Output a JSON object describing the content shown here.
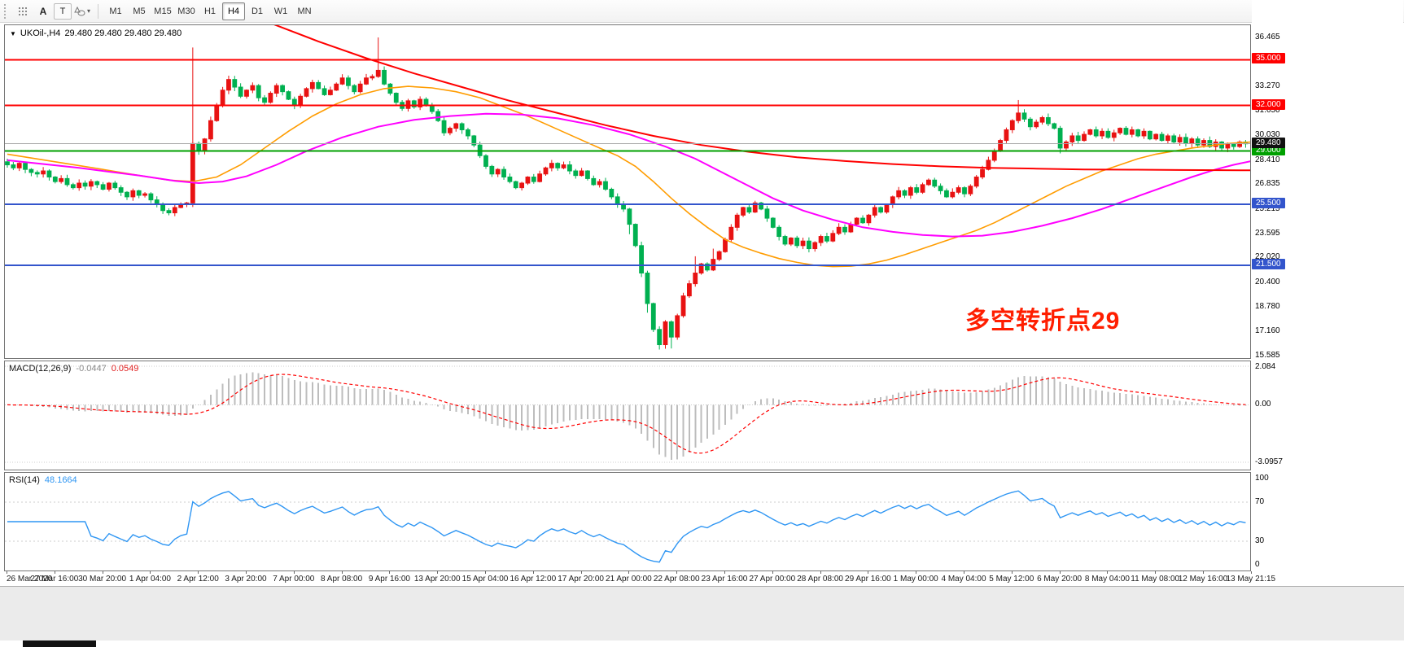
{
  "icons": {
    "caret": "▾",
    "chart_menu_arrow": "▼"
  },
  "toolbar": {
    "tool_a_label": "A",
    "tool_t_label": "T",
    "timeframes": [
      "M1",
      "M5",
      "M15",
      "M30",
      "H1",
      "H4",
      "D1",
      "W1",
      "MN"
    ],
    "active_timeframe": "H4"
  },
  "chart_title": {
    "symbol_period": "UKOil-,H4",
    "ohlc": "29.480 29.480 29.480 29.480"
  },
  "annotation": {
    "text": "多空转折点29",
    "color": "#ff1e00"
  },
  "colors": {
    "up_candle": "#e81212",
    "down_candle": "#00b050",
    "ma_orange": "#ff9c00",
    "ma_magenta": "#ff00ff",
    "ma_red": "#ff0000",
    "line_red": "#ff0000",
    "line_green": "#00a000",
    "line_blue": "#3355cc",
    "bid_line": "#a8a8a8",
    "macd_hist": "#bdbdbd",
    "macd_signal": "#ff0000",
    "rsi_line": "#2f96f3",
    "grid_dotted": "#cccccc"
  },
  "main_chart": {
    "levels": [
      {
        "label": "35.000",
        "price": 35.0,
        "color_key": "line_red"
      },
      {
        "label": "32.000",
        "price": 32.0,
        "color_key": "line_red"
      },
      {
        "label": "29.000",
        "price": 29.0,
        "color_key": "line_green"
      },
      {
        "label": "25.500",
        "price": 25.5,
        "color_key": "line_blue"
      },
      {
        "label": "21.500",
        "price": 21.5,
        "color_key": "line_blue"
      }
    ],
    "current_price": {
      "label": "29.480",
      "price": 29.48,
      "badge_color": "#111111"
    },
    "grid_labels": [
      "36.465",
      "33.270",
      "31.650",
      "30.030",
      "28.410",
      "26.835",
      "25.215",
      "23.595",
      "22.020",
      "20.400",
      "18.780",
      "17.160",
      "15.585"
    ]
  },
  "macd": {
    "title": "MACD(12,26,9)",
    "value_main": "-0.0447",
    "value_signal": "0.0549",
    "axis_labels": [
      {
        "t": "2.084",
        "v": 2.084
      },
      {
        "t": "0.00",
        "v": 0
      },
      {
        "t": "-3.0957",
        "v": -3.0957
      }
    ],
    "levels": [
      2.084,
      0,
      -3.0957
    ],
    "ylim": [
      -3.5,
      2.35
    ],
    "params": {
      "fast": 12,
      "slow": 26,
      "signal": 9
    }
  },
  "rsi": {
    "title": "RSI(14)",
    "value": "48.1664",
    "axis_labels": [
      {
        "t": "100",
        "v": 100
      },
      {
        "t": "70",
        "v": 70
      },
      {
        "t": "30",
        "v": 30
      },
      {
        "t": "0",
        "v": 0
      }
    ],
    "levels": [
      70,
      30
    ],
    "ylim": [
      0,
      100
    ],
    "params": {
      "period": 14
    }
  },
  "time_axis": {
    "candles_per_label": 8,
    "labels": [
      "26 Mar 2020",
      "27 Mar 16:00",
      "30 Mar 20:00",
      "1 Apr 04:00",
      "2 Apr 12:00",
      "3 Apr 20:00",
      "7 Apr 00:00",
      "8 Apr 08:00",
      "9 Apr 16:00",
      "13 Apr 20:00",
      "15 Apr 04:00",
      "16 Apr 12:00",
      "17 Apr 20:00",
      "21 Apr 00:00",
      "22 Apr 08:00",
      "23 Apr 16:00",
      "27 Apr 00:00",
      "28 Apr 08:00",
      "29 Apr 16:00",
      "1 May 00:00",
      "4 May 04:00",
      "5 May 12:00",
      "6 May 20:00",
      "8 May 04:00",
      "11 May 08:00",
      "12 May 16:00",
      "13 May 21:15"
    ]
  },
  "chart_data": {
    "type": "candlestick",
    "symbol": "UKOil-",
    "period": "H4",
    "price_range": [
      15.42,
      37.26
    ],
    "open_first": 28.3,
    "closes": [
      28.1,
      27.9,
      28.2,
      27.8,
      27.6,
      27.5,
      27.7,
      27.3,
      27.0,
      27.2,
      26.8,
      26.6,
      26.9,
      26.7,
      27.0,
      26.8,
      26.5,
      26.9,
      26.6,
      26.3,
      26.0,
      26.4,
      26.1,
      26.2,
      25.8,
      25.5,
      25.1,
      24.95,
      25.3,
      25.5,
      25.6,
      29.5,
      29.0,
      29.8,
      31.0,
      32.0,
      33.0,
      33.7,
      33.2,
      32.6,
      33.0,
      33.3,
      32.5,
      32.2,
      32.8,
      33.3,
      32.9,
      32.4,
      32.0,
      32.6,
      33.1,
      33.5,
      33.1,
      32.7,
      33.0,
      33.4,
      33.8,
      33.3,
      32.9,
      33.4,
      33.8,
      33.9,
      34.3,
      33.4,
      32.8,
      32.2,
      31.8,
      32.3,
      31.9,
      32.4,
      32.0,
      31.6,
      31.0,
      30.2,
      30.5,
      30.8,
      30.4,
      30.0,
      29.4,
      28.7,
      28.0,
      27.5,
      27.8,
      27.3,
      27.0,
      26.6,
      26.9,
      27.3,
      27.0,
      27.5,
      27.9,
      28.2,
      27.9,
      28.1,
      27.7,
      27.4,
      27.7,
      27.2,
      26.8,
      27.0,
      26.5,
      26.0,
      25.5,
      25.2,
      24.2,
      22.8,
      21.0,
      19.0,
      17.3,
      16.3,
      17.8,
      16.8,
      18.2,
      19.5,
      20.3,
      21.0,
      21.6,
      21.2,
      21.9,
      22.4,
      23.2,
      24.0,
      24.8,
      25.3,
      25.0,
      25.6,
      25.2,
      24.6,
      24.0,
      23.4,
      22.9,
      23.3,
      22.8,
      23.1,
      22.6,
      23.0,
      23.4,
      23.1,
      23.6,
      24.0,
      23.7,
      24.2,
      24.6,
      24.3,
      24.8,
      25.3,
      25.0,
      25.5,
      26.0,
      26.4,
      26.1,
      26.6,
      26.3,
      26.8,
      27.1,
      26.7,
      26.4,
      26.0,
      26.3,
      26.6,
      26.2,
      26.7,
      27.3,
      27.8,
      28.4,
      29.0,
      29.7,
      30.4,
      31.0,
      31.5,
      31.1,
      30.6,
      30.9,
      31.2,
      30.8,
      30.5,
      29.2,
      29.6,
      30.0,
      29.7,
      30.1,
      30.4,
      30.0,
      30.3,
      29.9,
      30.2,
      30.5,
      30.1,
      30.4,
      30.0,
      30.3,
      29.8,
      30.1,
      29.7,
      30.0,
      29.6,
      29.9,
      29.5,
      29.8,
      29.4,
      29.7,
      29.3,
      29.6,
      29.2,
      29.5,
      29.3,
      29.6,
      29.48
    ],
    "wick_overrides": {
      "31": {
        "h": 35.8
      },
      "37": {
        "h": 33.95
      },
      "62": {
        "h": 36.46
      },
      "104": {
        "l": 23.55
      },
      "107": {
        "l": 18.4
      },
      "109": {
        "l": 15.98
      },
      "111": {
        "l": 16.05
      },
      "115": {
        "h": 22.1
      },
      "118": {
        "h": 22.6
      },
      "169": {
        "h": 32.35
      },
      "176": {
        "l": 28.85
      }
    },
    "ma_lines": [
      {
        "name": "ma-fast-orange",
        "color_key": "ma_orange",
        "width": 1.6,
        "points": [
          [
            0,
            28.8
          ],
          [
            8,
            28.3
          ],
          [
            16,
            27.8
          ],
          [
            22,
            27.4
          ],
          [
            27,
            27.1
          ],
          [
            31,
            27.0
          ],
          [
            35,
            27.3
          ],
          [
            39,
            28.1
          ],
          [
            43,
            29.2
          ],
          [
            47,
            30.3
          ],
          [
            51,
            31.3
          ],
          [
            55,
            32.1
          ],
          [
            59,
            32.7
          ],
          [
            63,
            33.1
          ],
          [
            67,
            33.25
          ],
          [
            71,
            33.15
          ],
          [
            75,
            32.9
          ],
          [
            79,
            32.5
          ],
          [
            83,
            31.9
          ],
          [
            87,
            31.3
          ],
          [
            91,
            30.6
          ],
          [
            95,
            29.9
          ],
          [
            99,
            29.2
          ],
          [
            102,
            28.7
          ],
          [
            105,
            28.0
          ],
          [
            108,
            27.0
          ],
          [
            111,
            25.9
          ],
          [
            114,
            24.9
          ],
          [
            117,
            24.0
          ],
          [
            120,
            23.2
          ],
          [
            123,
            22.7
          ],
          [
            126,
            22.3
          ],
          [
            129,
            21.95
          ],
          [
            132,
            21.7
          ],
          [
            135,
            21.5
          ],
          [
            138,
            21.42
          ],
          [
            141,
            21.45
          ],
          [
            144,
            21.6
          ],
          [
            147,
            21.85
          ],
          [
            150,
            22.2
          ],
          [
            153,
            22.6
          ],
          [
            156,
            23.0
          ],
          [
            159,
            23.4
          ],
          [
            162,
            23.8
          ],
          [
            165,
            24.3
          ],
          [
            168,
            24.9
          ],
          [
            171,
            25.5
          ],
          [
            174,
            26.1
          ],
          [
            177,
            26.7
          ],
          [
            180,
            27.2
          ],
          [
            183,
            27.7
          ],
          [
            186,
            28.1
          ],
          [
            189,
            28.5
          ],
          [
            192,
            28.8
          ],
          [
            195,
            29.0
          ],
          [
            198,
            29.2
          ],
          [
            201,
            29.35
          ],
          [
            204,
            29.5
          ],
          [
            208,
            29.6
          ]
        ]
      },
      {
        "name": "ma-slow-magenta",
        "color_key": "ma_magenta",
        "width": 2,
        "points": [
          [
            0,
            28.4
          ],
          [
            12,
            27.9
          ],
          [
            22,
            27.4
          ],
          [
            28,
            27.05
          ],
          [
            32,
            26.9
          ],
          [
            36,
            27.0
          ],
          [
            40,
            27.35
          ],
          [
            45,
            28.1
          ],
          [
            50,
            29.0
          ],
          [
            56,
            29.9
          ],
          [
            62,
            30.6
          ],
          [
            68,
            31.05
          ],
          [
            74,
            31.3
          ],
          [
            80,
            31.45
          ],
          [
            86,
            31.4
          ],
          [
            92,
            31.15
          ],
          [
            98,
            30.7
          ],
          [
            104,
            30.1
          ],
          [
            110,
            29.3
          ],
          [
            115,
            28.5
          ],
          [
            119,
            27.7
          ],
          [
            123,
            26.9
          ],
          [
            128,
            25.9
          ],
          [
            133,
            25.1
          ],
          [
            138,
            24.5
          ],
          [
            143,
            24.0
          ],
          [
            148,
            23.7
          ],
          [
            153,
            23.5
          ],
          [
            158,
            23.4
          ],
          [
            163,
            23.45
          ],
          [
            168,
            23.7
          ],
          [
            173,
            24.1
          ],
          [
            178,
            24.6
          ],
          [
            183,
            25.2
          ],
          [
            188,
            25.9
          ],
          [
            193,
            26.6
          ],
          [
            198,
            27.3
          ],
          [
            202,
            27.8
          ],
          [
            205,
            28.1
          ],
          [
            208,
            28.35
          ]
        ]
      },
      {
        "name": "ma-long-red",
        "color_key": "ma_red",
        "width": 2,
        "points": [
          [
            44,
            37.4
          ],
          [
            52,
            36.2
          ],
          [
            60,
            35.1
          ],
          [
            68,
            34.1
          ],
          [
            76,
            33.2
          ],
          [
            84,
            32.3
          ],
          [
            92,
            31.5
          ],
          [
            100,
            30.7
          ],
          [
            108,
            30.0
          ],
          [
            116,
            29.4
          ],
          [
            124,
            28.95
          ],
          [
            132,
            28.6
          ],
          [
            140,
            28.35
          ],
          [
            148,
            28.15
          ],
          [
            156,
            28.0
          ],
          [
            164,
            27.9
          ],
          [
            172,
            27.85
          ],
          [
            180,
            27.8
          ],
          [
            188,
            27.78
          ],
          [
            196,
            27.76
          ],
          [
            208,
            27.74
          ]
        ]
      }
    ]
  }
}
